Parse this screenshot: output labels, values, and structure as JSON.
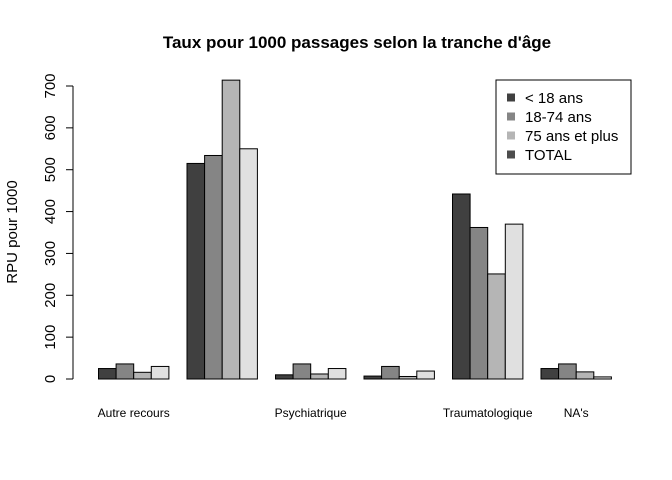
{
  "chart_data": {
    "type": "bar",
    "title": "Taux pour 1000 passages selon la tranche d'âge",
    "xlabel": "",
    "ylabel": "RPU pour 1000",
    "ylim": [
      0,
      700
    ],
    "yticks": [
      0,
      100,
      200,
      300,
      400,
      500,
      600,
      700
    ],
    "grid": false,
    "legend_position": "top-right",
    "categories": [
      "Autre recours",
      "",
      "Psychiatrique",
      "",
      "Traumatologique",
      "NA's"
    ],
    "series": [
      {
        "name": "< 18 ans",
        "color": "#404040",
        "values": [
          25,
          515,
          10,
          7,
          442,
          25
        ]
      },
      {
        "name": "18-74 ans",
        "color": "#858585",
        "values": [
          36,
          534,
          36,
          30,
          362,
          36
        ]
      },
      {
        "name": "75 ans et plus",
        "color": "#b5b5b5",
        "values": [
          16,
          714,
          12,
          6,
          251,
          17
        ]
      },
      {
        "name": "TOTAL",
        "color": "#e0e0e0",
        "legend_color": "#4d4d4d",
        "values": [
          30,
          550,
          25,
          19,
          370,
          5
        ]
      }
    ]
  }
}
